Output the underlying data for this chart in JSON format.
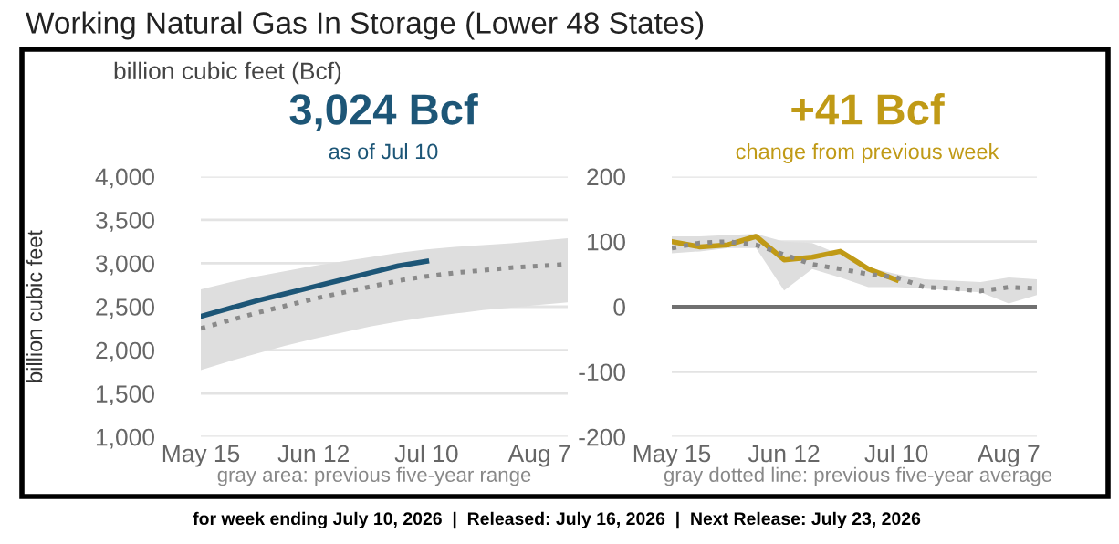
{
  "chart_data": [
    {
      "type": "line",
      "title": "3,024 Bcf",
      "subtitle": "as of Jul 10",
      "ylabel": "billion cubic feet",
      "annotations": [
        "Working Natural Gas In Storage (Lower 48 States)",
        "billion cubic feet (Bcf)",
        "gray area: previous five-year range",
        "for week ending July 10, 2026  |  Released: July 16, 2026  |  Next Release: July 23, 2026"
      ],
      "x": [
        "2026-05-15",
        "2026-05-22",
        "2026-05-29",
        "2026-06-05",
        "2026-06-12",
        "2026-06-19",
        "2026-06-26",
        "2026-07-03",
        "2026-07-10",
        "2026-07-17",
        "2026-07-24",
        "2026-07-31",
        "2026-08-07",
        "2026-08-14"
      ],
      "series": [
        {
          "color": "#1d5677",
          "values": [
            2388,
            2480,
            2570,
            2650,
            2730,
            2810,
            2890,
            2970,
            3024,
            null,
            null,
            null,
            null,
            null
          ]
        },
        {
          "color": "#8a8a8a",
          "line_style": "dotted",
          "values": [
            2250,
            2340,
            2430,
            2510,
            2590,
            2660,
            2730,
            2800,
            2850,
            2890,
            2920,
            2950,
            2970,
            2990
          ],
          "lower": [
            1770,
            1870,
            1960,
            2050,
            2130,
            2200,
            2270,
            2330,
            2380,
            2420,
            2460,
            2490,
            2520,
            2550
          ],
          "upper": [
            2700,
            2780,
            2850,
            2910,
            2970,
            3020,
            3070,
            3120,
            3160,
            3190,
            3210,
            3230,
            3260,
            3290
          ]
        }
      ],
      "xlim": [
        "2026-05-15",
        "2026-08-14"
      ],
      "xticks": [
        {
          "value": "2026-05-15",
          "label": "May 15"
        },
        {
          "value": "2026-06-12",
          "label": "Jun 12"
        },
        {
          "value": "2026-07-10",
          "label": "Jul 10"
        },
        {
          "value": "2026-08-07",
          "label": "Aug 7"
        }
      ],
      "ylim": [
        1000,
        4000
      ],
      "yticks": [
        {
          "value": 1000,
          "label": "1,000"
        },
        {
          "value": 1500,
          "label": "1,500"
        },
        {
          "value": 2000,
          "label": "2,000"
        },
        {
          "value": 2500,
          "label": "2,500"
        },
        {
          "value": 3000,
          "label": "3,000"
        },
        {
          "value": 3500,
          "label": "3,500"
        },
        {
          "value": 4000,
          "label": "4,000"
        }
      ],
      "grid": "y"
    },
    {
      "type": "line",
      "title": "+41 Bcf",
      "subtitle": "change from previous week",
      "annotations": [
        "gray dotted line: previous five-year average"
      ],
      "x": [
        "2026-05-15",
        "2026-05-22",
        "2026-05-29",
        "2026-06-05",
        "2026-06-12",
        "2026-06-19",
        "2026-06-26",
        "2026-07-03",
        "2026-07-10",
        "2026-07-17",
        "2026-07-24",
        "2026-07-31",
        "2026-08-07",
        "2026-08-14"
      ],
      "series": [
        {
          "color": "#c09a16",
          "values": [
            100,
            92,
            95,
            108,
            72,
            76,
            85,
            58,
            41,
            null,
            null,
            null,
            null,
            null
          ]
        },
        {
          "color": "#8a8a8a",
          "line_style": "dotted",
          "values": [
            90,
            98,
            100,
            95,
            80,
            65,
            58,
            50,
            45,
            30,
            28,
            24,
            30,
            28
          ],
          "lower": [
            82,
            85,
            90,
            90,
            25,
            58,
            45,
            30,
            30,
            28,
            25,
            22,
            5,
            18
          ],
          "upper": [
            108,
            108,
            110,
            112,
            100,
            98,
            80,
            60,
            50,
            42,
            40,
            38,
            45,
            42
          ]
        }
      ],
      "xlim": [
        "2026-05-15",
        "2026-08-14"
      ],
      "xticks": [
        {
          "value": "2026-05-15",
          "label": "May 15"
        },
        {
          "value": "2026-06-12",
          "label": "Jun 12"
        },
        {
          "value": "2026-07-10",
          "label": "Jul 10"
        },
        {
          "value": "2026-08-07",
          "label": "Aug 7"
        }
      ],
      "ylim": [
        -200,
        200
      ],
      "yticks": [
        -200,
        -100,
        0,
        100,
        200
      ],
      "ref_lines": [
        {
          "axis": "y",
          "value": 0,
          "color": "#707070"
        }
      ],
      "grid": "y"
    }
  ]
}
